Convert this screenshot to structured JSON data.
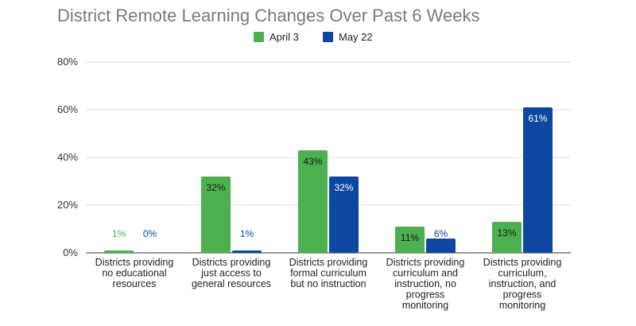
{
  "chart_data": {
    "type": "bar",
    "title": "District Remote Learning Changes Over Past 6 Weeks",
    "categories": [
      [
        "Districts providing",
        "no educational",
        "resources"
      ],
      [
        "Districts providing",
        "just access to",
        "general resources"
      ],
      [
        "Districts providing",
        "formal curriculum",
        "but no instruction"
      ],
      [
        "Districts providing",
        "curriculum and",
        "instruction, no",
        "progress",
        "monitoring"
      ],
      [
        "Districts providing",
        "curriculum,",
        "instruction, and",
        "progress",
        "monitoring"
      ]
    ],
    "series": [
      {
        "name": "April 3",
        "color": "#4caf50",
        "values": [
          1,
          32,
          43,
          11,
          13
        ],
        "labels": [
          "1%",
          "32%",
          "43%",
          "11%",
          "13%"
        ]
      },
      {
        "name": "May 22",
        "color": "#0d47a1",
        "values": [
          0,
          1,
          32,
          6,
          61
        ],
        "labels": [
          "0%",
          "1%",
          "32%",
          "6%",
          "61%"
        ]
      }
    ],
    "ylim": [
      0,
      80
    ],
    "yticks": [
      0,
      20,
      40,
      60,
      80
    ],
    "ytick_labels": [
      "0%",
      "20%",
      "40%",
      "60%",
      "80%"
    ],
    "grid": true,
    "legend": "top-center"
  }
}
